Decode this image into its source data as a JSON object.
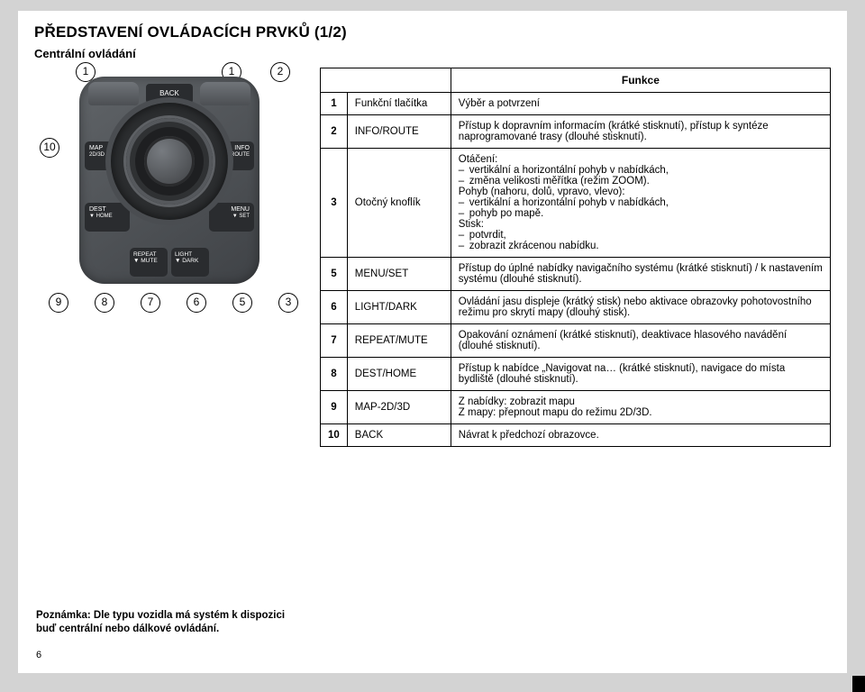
{
  "title": "PŘEDSTAVENÍ OVLÁDACÍCH PRVKŮ (1/2)",
  "subtitle": "Centrální ovládání",
  "device": {
    "back": "BACK",
    "buttons": {
      "map": {
        "l1": "MAP",
        "l2": "2D/3D"
      },
      "info": {
        "l1": "INFO",
        "l2": "▼ROUTE"
      },
      "dest": {
        "l1": "DEST",
        "l2": "▼ HOME"
      },
      "menu": {
        "l1": "MENU",
        "l2": "▼ SET"
      },
      "repeat": {
        "l1": "REPEAT",
        "l2": "▼ MUTE"
      },
      "light": {
        "l1": "LIGHT",
        "l2": "▼ DARK"
      }
    }
  },
  "callouts": {
    "top": [
      "1",
      "1",
      "2"
    ],
    "left10": "10",
    "bottom": [
      "9",
      "8",
      "7",
      "6",
      "5",
      "3"
    ]
  },
  "note": "Poznámka: Dle typu vozidla má systém k dispozici buď centrální nebo dálkové ovládání.",
  "pageNumber": "6",
  "table": {
    "header": "Funkce",
    "rows": [
      {
        "n": "1",
        "name": "Funkční tlačítka",
        "desc": "Výběr a potvrzení"
      },
      {
        "n": "2",
        "name": "INFO/ROUTE",
        "desc": "Přístup k dopravním informacím (krátké stisknutí), přístup k syntéze naprogramované trasy (dlouhé stisknutí)."
      },
      {
        "n": "3",
        "name": "Otočný knoflík",
        "structured": {
          "g1": "Otáčení:",
          "g1items": [
            "vertikální a horizontální pohyb v nabídkách,",
            "změna velikosti měřítka (režim ZOOM)."
          ],
          "g2": "Pohyb (nahoru, dolů, vpravo, vlevo):",
          "g2items": [
            "vertikální a horizontální pohyb v nabídkách,",
            "pohyb po mapě."
          ],
          "g3": "Stisk:",
          "g3items": [
            "potvrdit,",
            "zobrazit zkrácenou nabídku."
          ]
        }
      },
      {
        "n": "5",
        "name": "MENU/SET",
        "desc": "Přístup do úplné nabídky navigačního systému (krátké stisknutí) / k nastavením systému (dlouhé stisknutí)."
      },
      {
        "n": "6",
        "name": "LIGHT/DARK",
        "desc": "Ovládání jasu displeje (krátký stisk) nebo aktivace obrazovky pohotovostního režimu pro skrytí mapy (dlouhý stisk)."
      },
      {
        "n": "7",
        "name": "REPEAT/MUTE",
        "desc": "Opakování oznámení (krátké stisknutí), deaktivace hlasového navádění (dlouhé stisknutí)."
      },
      {
        "n": "8",
        "name": "DEST/HOME",
        "desc": "Přístup k nabídce „Navigovat na… (krátké stisknutí), navigace do místa bydliště (dlouhé stisknutí)."
      },
      {
        "n": "9",
        "name": "MAP-2D/3D",
        "desc": "Z nabídky: zobrazit mapu\nZ mapy: přepnout mapu do režimu 2D/3D."
      },
      {
        "n": "10",
        "name": "BACK",
        "desc": "Návrat k předchozí obrazovce."
      }
    ]
  },
  "style": {
    "pageBg": "#d3d3d3",
    "paperBg": "#ffffff"
  }
}
